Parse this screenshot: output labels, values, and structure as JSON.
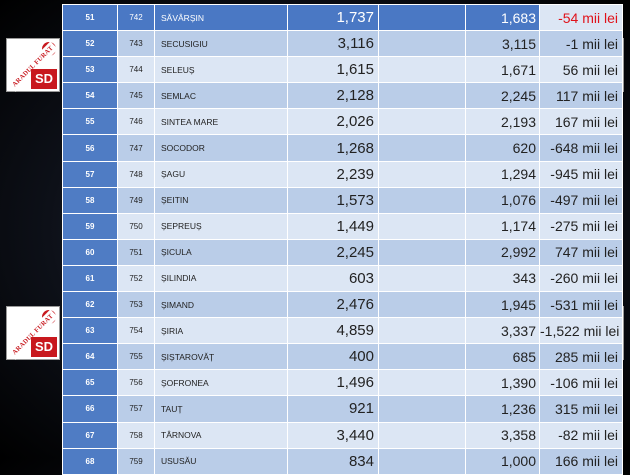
{
  "logo": {
    "band_text": "ARADUL FURAT",
    "badge_text": "SD"
  },
  "rows": [
    {
      "idx": "51",
      "code": "742",
      "name": "SĂVÂRȘIN",
      "v1": "1,737",
      "v2": "1,683",
      "diff": "-54 mii lei"
    },
    {
      "idx": "52",
      "code": "743",
      "name": "SECUSIGIU",
      "v1": "3,116",
      "v2": "3,115",
      "diff": "-1 mii lei"
    },
    {
      "idx": "53",
      "code": "744",
      "name": "SELEUȘ",
      "v1": "1,615",
      "v2": "1,671",
      "diff": "56 mii lei"
    },
    {
      "idx": "54",
      "code": "745",
      "name": "SEMLAC",
      "v1": "2,128",
      "v2": "2,245",
      "diff": "117 mii lei"
    },
    {
      "idx": "55",
      "code": "746",
      "name": "SINTEA MARE",
      "v1": "2,026",
      "v2": "2,193",
      "diff": "167 mii lei"
    },
    {
      "idx": "56",
      "code": "747",
      "name": "SOCODOR",
      "v1": "1,268",
      "v2": "620",
      "diff": "-648 mii lei"
    },
    {
      "idx": "57",
      "code": "748",
      "name": "ȘAGU",
      "v1": "2,239",
      "v2": "1,294",
      "diff": "-945 mii lei"
    },
    {
      "idx": "58",
      "code": "749",
      "name": "ȘEITIN",
      "v1": "1,573",
      "v2": "1,076",
      "diff": "-497 mii lei"
    },
    {
      "idx": "59",
      "code": "750",
      "name": "ȘEPREUȘ",
      "v1": "1,449",
      "v2": "1,174",
      "diff": "-275 mii lei"
    },
    {
      "idx": "60",
      "code": "751",
      "name": "ȘICULA",
      "v1": "2,245",
      "v2": "2,992",
      "diff": "747 mii lei"
    },
    {
      "idx": "61",
      "code": "752",
      "name": "ȘILINDIA",
      "v1": "603",
      "v2": "343",
      "diff": "-260 mii lei"
    },
    {
      "idx": "62",
      "code": "753",
      "name": "ȘIMAND",
      "v1": "2,476",
      "v2": "1,945",
      "diff": "-531 mii lei"
    },
    {
      "idx": "63",
      "code": "754",
      "name": "ȘIRIA",
      "v1": "4,859",
      "v2": "3,337",
      "diff": "-1,522 mii lei"
    },
    {
      "idx": "64",
      "code": "755",
      "name": "ȘIȘTAROVĂȚ",
      "v1": "400",
      "v2": "685",
      "diff": "285 mii lei"
    },
    {
      "idx": "65",
      "code": "756",
      "name": "ȘOFRONEA",
      "v1": "1,496",
      "v2": "1,390",
      "diff": "-106 mii lei"
    },
    {
      "idx": "66",
      "code": "757",
      "name": "TAUȚ",
      "v1": "921",
      "v2": "1,236",
      "diff": "315 mii lei"
    },
    {
      "idx": "67",
      "code": "758",
      "name": "TÂRNOVA",
      "v1": "3,440",
      "v2": "3,358",
      "diff": "-82 mii lei"
    },
    {
      "idx": "68",
      "code": "759",
      "name": "USUSĂU",
      "v1": "834",
      "v2": "1,000",
      "diff": "166 mii lei"
    }
  ]
}
